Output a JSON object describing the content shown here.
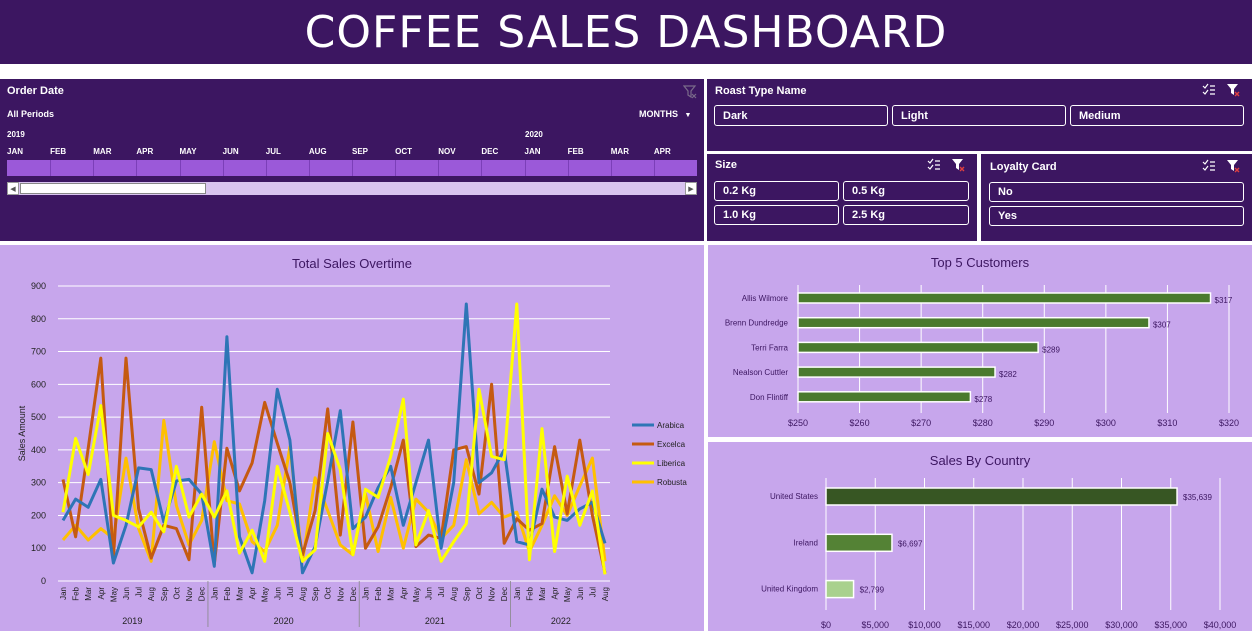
{
  "header": {
    "title": "COFFEE SALES DASHBOARD"
  },
  "timeline": {
    "title": "Order Date",
    "period": "All Periods",
    "level": "MONTHS",
    "years": [
      "2019",
      "2020"
    ],
    "months": [
      "JAN",
      "FEB",
      "MAR",
      "APR",
      "MAY",
      "JUN",
      "JUL",
      "AUG",
      "SEP",
      "OCT",
      "NOV",
      "DEC",
      "JAN",
      "FEB",
      "MAR",
      "APR"
    ],
    "scroll_position": 0.28
  },
  "roast": {
    "title": "Roast Type Name",
    "items": [
      "Dark",
      "Light",
      "Medium"
    ]
  },
  "size": {
    "title": "Size",
    "items": [
      "0.2 Kg",
      "0.5 Kg",
      "1.0 Kg",
      "2.5 Kg"
    ]
  },
  "loyalty": {
    "title": "Loyalty Card",
    "items": [
      "No",
      "Yes"
    ]
  },
  "colors": {
    "panel": "#3c1661",
    "chart_bg": "#c7a6ec",
    "bar_green": "#4a7a2e",
    "arabica": "#2e75b6",
    "excelsa": "#c55a11",
    "liberica": "#ffff00",
    "robusta": "#ffc000"
  },
  "total_sales": {
    "title": "Total Sales Overtime",
    "ylabel": "Sales Amount",
    "yticks": [
      "0",
      "100",
      "200",
      "300",
      "400",
      "500",
      "600",
      "700",
      "800",
      "900"
    ],
    "months": [
      "Jan",
      "Feb",
      "Mar",
      "Apr",
      "May",
      "Jun",
      "Jul",
      "Aug",
      "Sep",
      "Oct",
      "Nov",
      "Dec",
      "Jan",
      "Feb",
      "Mar",
      "Apr",
      "May",
      "Jun",
      "Jul",
      "Aug",
      "Sep",
      "Oct",
      "Nov",
      "Dec",
      "Jan",
      "Feb",
      "Mar",
      "Apr",
      "May",
      "Jun",
      "Jul",
      "Aug",
      "Sep",
      "Oct",
      "Nov",
      "Dec",
      "Jan",
      "Feb",
      "Mar",
      "Apr",
      "May",
      "Jun",
      "Jul",
      "Aug"
    ],
    "years": [
      "2019",
      "2020",
      "2021",
      "2022"
    ],
    "legend": [
      "Arabica",
      "Excelca",
      "Liberica",
      "Robusta"
    ]
  },
  "top_customers": {
    "title": "Top 5 Customers",
    "xticks": [
      "$250",
      "$260",
      "$270",
      "$280",
      "$290",
      "$300",
      "$310",
      "$320"
    ],
    "names": [
      "Allis Wilmore",
      "Brenn Dundredge",
      "Terri Farra",
      "Nealson Cuttler",
      "Don Flintiff"
    ],
    "labels": [
      "$317",
      "$307",
      "$289",
      "$282",
      "$278"
    ]
  },
  "sales_country": {
    "title": "Sales By Country",
    "xticks": [
      "$0",
      "$5,000",
      "$10,000",
      "$15,000",
      "$20,000",
      "$25,000",
      "$30,000",
      "$35,000",
      "$40,000"
    ],
    "names": [
      "United States",
      "Ireland",
      "United Kingdom"
    ],
    "labels": [
      "$35,639",
      "$6,697",
      "$2,799"
    ]
  },
  "chart_data": [
    {
      "type": "line",
      "title": "Total Sales Overtime",
      "ylabel": "Sales Amount",
      "ylim": [
        0,
        900
      ],
      "x": [
        "Jan 2019",
        "Feb 2019",
        "Mar 2019",
        "Apr 2019",
        "May 2019",
        "Jun 2019",
        "Jul 2019",
        "Aug 2019",
        "Sep 2019",
        "Oct 2019",
        "Nov 2019",
        "Dec 2019",
        "Jan 2020",
        "Feb 2020",
        "Mar 2020",
        "Apr 2020",
        "May 2020",
        "Jun 2020",
        "Jul 2020",
        "Aug 2020",
        "Sep 2020",
        "Oct 2020",
        "Nov 2020",
        "Dec 2020",
        "Jan 2021",
        "Feb 2021",
        "Mar 2021",
        "Apr 2021",
        "May 2021",
        "Jun 2021",
        "Jul 2021",
        "Aug 2021",
        "Sep 2021",
        "Oct 2021",
        "Nov 2021",
        "Dec 2021",
        "Jan 2022",
        "Feb 2022",
        "Mar 2022",
        "Apr 2022",
        "May 2022",
        "Jun 2022",
        "Jul 2022",
        "Aug 2022"
      ],
      "series": [
        {
          "name": "Arabica",
          "values": [
            185,
            250,
            225,
            310,
            55,
            170,
            345,
            340,
            180,
            305,
            310,
            265,
            45,
            745,
            135,
            25,
            245,
            585,
            430,
            25,
            105,
            305,
            520,
            160,
            195,
            285,
            350,
            170,
            300,
            430,
            100,
            300,
            845,
            300,
            330,
            400,
            120,
            110,
            280,
            195,
            185,
            220,
            240,
            115
          ]
        },
        {
          "name": "Excelca",
          "values": [
            310,
            135,
            405,
            680,
            70,
            680,
            220,
            70,
            170,
            160,
            65,
            530,
            50,
            405,
            275,
            360,
            545,
            420,
            300,
            80,
            215,
            525,
            140,
            485,
            100,
            165,
            285,
            430,
            105,
            140,
            130,
            400,
            410,
            265,
            600,
            115,
            190,
            155,
            175,
            410,
            205,
            430,
            200,
            25
          ]
        },
        {
          "name": "Liberica",
          "values": [
            210,
            435,
            325,
            535,
            200,
            185,
            165,
            210,
            150,
            350,
            195,
            265,
            195,
            275,
            85,
            155,
            60,
            350,
            210,
            60,
            95,
            450,
            340,
            80,
            280,
            255,
            380,
            555,
            110,
            215,
            60,
            120,
            175,
            585,
            380,
            370,
            845,
            65,
            465,
            90,
            320,
            170,
            275,
            20
          ]
        },
        {
          "name": "Robusta",
          "values": [
            125,
            170,
            125,
            160,
            130,
            375,
            160,
            60,
            490,
            230,
            110,
            185,
            425,
            245,
            235,
            120,
            90,
            170,
            410,
            60,
            315,
            215,
            110,
            80,
            265,
            90,
            255,
            100,
            250,
            210,
            130,
            170,
            370,
            205,
            240,
            195,
            210,
            90,
            170,
            260,
            200,
            290,
            375,
            60
          ]
        }
      ]
    },
    {
      "type": "bar",
      "title": "Top 5 Customers",
      "categories": [
        "Allis Wilmore",
        "Brenn Dundredge",
        "Terri Farra",
        "Nealson Cuttler",
        "Don Flintiff"
      ],
      "values": [
        317,
        307,
        289,
        282,
        278
      ],
      "xlim": [
        250,
        320
      ]
    },
    {
      "type": "bar",
      "title": "Sales By Country",
      "categories": [
        "United States",
        "Ireland",
        "United Kingdom"
      ],
      "values": [
        35639,
        6697,
        2799
      ],
      "xlim": [
        0,
        40000
      ]
    }
  ]
}
